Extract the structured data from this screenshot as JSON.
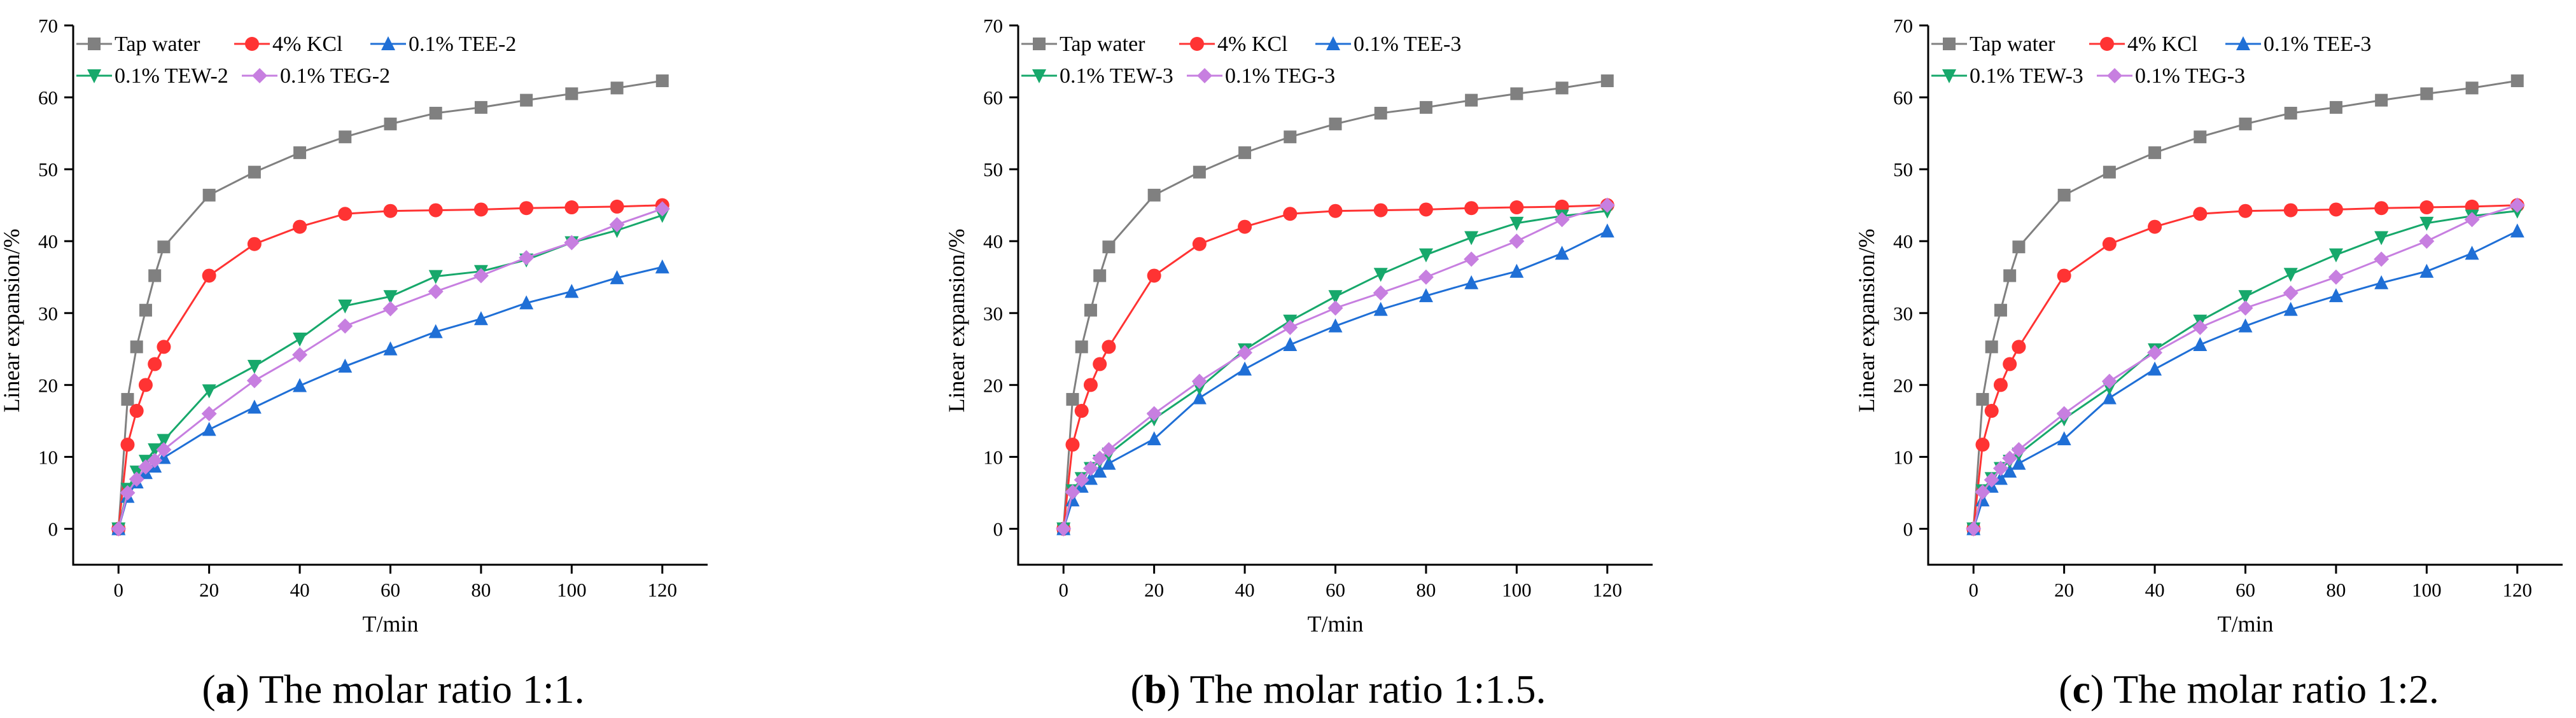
{
  "figure": {
    "captions": [
      {
        "prefix": "(",
        "letter": "a",
        "suffix": ") The molar ratio 1:1."
      },
      {
        "prefix": "(",
        "letter": "b",
        "suffix": ") The molar ratio 1:1.5."
      },
      {
        "prefix": "(",
        "letter": "c",
        "suffix": ") The molar ratio 1:2."
      }
    ]
  },
  "chart_data": [
    {
      "type": "line",
      "title": "",
      "xlabel": "T/min",
      "ylabel": "Linear expansion/%",
      "xlim": [
        -10,
        130
      ],
      "ylim": [
        -5,
        70
      ],
      "xticks": [
        0,
        20,
        40,
        60,
        80,
        100,
        120
      ],
      "yticks": [
        0,
        10,
        20,
        30,
        40,
        50,
        60,
        70
      ],
      "grid": false,
      "legend_position": "top-left",
      "x": [
        0,
        2,
        4,
        6,
        8,
        10,
        20,
        30,
        40,
        50,
        60,
        70,
        80,
        90,
        100,
        110,
        120
      ],
      "series": [
        {
          "name": "Tap water",
          "color": "#808080",
          "marker": "square",
          "values": [
            0,
            18,
            25.3,
            30.4,
            35.2,
            39.2,
            46.4,
            49.6,
            52.3,
            54.5,
            56.3,
            57.8,
            58.6,
            59.6,
            60.5,
            61.3,
            62.3
          ]
        },
        {
          "name": "4% KCl",
          "color": "#ff3333",
          "marker": "circle",
          "values": [
            0,
            11.7,
            16.4,
            20,
            22.9,
            25.3,
            35.2,
            39.6,
            42,
            43.8,
            44.2,
            44.3,
            44.4,
            44.6,
            44.7,
            44.8,
            45
          ]
        },
        {
          "name": "0.1% TEE-2",
          "color": "#1f6fd6",
          "marker": "triangle-up",
          "values": [
            0,
            4.5,
            6.5,
            7.8,
            8.7,
            9.9,
            13.8,
            16.9,
            19.9,
            22.6,
            25,
            27.4,
            29.2,
            31.4,
            33,
            34.9,
            36.4
          ]
        },
        {
          "name": "0.1% TEW-2",
          "color": "#17a86b",
          "marker": "triangle-down",
          "values": [
            0,
            5.5,
            7.9,
            9.4,
            11,
            12.3,
            19.2,
            22.6,
            26.4,
            31,
            32.3,
            35.1,
            35.8,
            37.4,
            39.8,
            41.5,
            43.6
          ]
        },
        {
          "name": "0.1% TEG-2",
          "color": "#c77fe0",
          "marker": "diamond",
          "values": [
            0,
            5,
            6.9,
            8.6,
            9.5,
            11,
            16,
            20.6,
            24.2,
            28.2,
            30.6,
            33,
            35.2,
            37.7,
            39.8,
            42.3,
            44.5
          ]
        }
      ]
    },
    {
      "type": "line",
      "title": "",
      "xlabel": "T/min",
      "ylabel": "Linear expansion/%",
      "xlim": [
        -10,
        130
      ],
      "ylim": [
        -5,
        70
      ],
      "xticks": [
        0,
        20,
        40,
        60,
        80,
        100,
        120
      ],
      "yticks": [
        0,
        10,
        20,
        30,
        40,
        50,
        60,
        70
      ],
      "grid": false,
      "legend_position": "top-left",
      "x": [
        0,
        2,
        4,
        6,
        8,
        10,
        20,
        30,
        40,
        50,
        60,
        70,
        80,
        90,
        100,
        110,
        120
      ],
      "series": [
        {
          "name": "Tap water",
          "color": "#808080",
          "marker": "square",
          "values": [
            0,
            18,
            25.3,
            30.4,
            35.2,
            39.2,
            46.4,
            49.6,
            52.3,
            54.5,
            56.3,
            57.8,
            58.6,
            59.6,
            60.5,
            61.3,
            62.3
          ]
        },
        {
          "name": "4% KCl",
          "color": "#ff3333",
          "marker": "circle",
          "values": [
            0,
            11.7,
            16.4,
            20,
            22.9,
            25.3,
            35.2,
            39.6,
            42,
            43.8,
            44.2,
            44.3,
            44.4,
            44.6,
            44.7,
            44.8,
            45
          ]
        },
        {
          "name": "0.1% TEE-3",
          "color": "#1f6fd6",
          "marker": "triangle-up",
          "values": [
            0,
            4,
            5.9,
            7,
            8,
            9.1,
            12.5,
            18.2,
            22.2,
            25.6,
            28.2,
            30.5,
            32.4,
            34.2,
            35.8,
            38.3,
            41.4
          ]
        },
        {
          "name": "0.1% TEW-3",
          "color": "#17a86b",
          "marker": "triangle-down",
          "values": [
            0,
            5.3,
            7,
            8.4,
            9.4,
            10.4,
            15.3,
            19.6,
            24.9,
            28.9,
            32.3,
            35.4,
            38.1,
            40.5,
            42.5,
            43.5,
            44.2
          ]
        },
        {
          "name": "0.1% TEG-3",
          "color": "#c77fe0",
          "marker": "diamond",
          "values": [
            0,
            5.1,
            6.8,
            8.4,
            9.8,
            11,
            16,
            20.5,
            24.5,
            28,
            30.7,
            32.8,
            35,
            37.5,
            40,
            43,
            45
          ]
        }
      ]
    },
    {
      "type": "line",
      "title": "",
      "xlabel": "T/min",
      "ylabel": "Linear expansion/%",
      "xlim": [
        -10,
        130
      ],
      "ylim": [
        -5,
        70
      ],
      "xticks": [
        0,
        20,
        40,
        60,
        80,
        100,
        120
      ],
      "yticks": [
        0,
        10,
        20,
        30,
        40,
        50,
        60,
        70
      ],
      "grid": false,
      "legend_position": "top-left",
      "x": [
        0,
        2,
        4,
        6,
        8,
        10,
        20,
        30,
        40,
        50,
        60,
        70,
        80,
        90,
        100,
        110,
        120
      ],
      "series": [
        {
          "name": "Tap water",
          "color": "#808080",
          "marker": "square",
          "values": [
            0,
            18,
            25.3,
            30.4,
            35.2,
            39.2,
            46.4,
            49.6,
            52.3,
            54.5,
            56.3,
            57.8,
            58.6,
            59.6,
            60.5,
            61.3,
            62.3
          ]
        },
        {
          "name": "4% KCl",
          "color": "#ff3333",
          "marker": "circle",
          "values": [
            0,
            11.7,
            16.4,
            20,
            22.9,
            25.3,
            35.2,
            39.6,
            42,
            43.8,
            44.2,
            44.3,
            44.4,
            44.6,
            44.7,
            44.8,
            45
          ]
        },
        {
          "name": "0.1% TEE-3",
          "color": "#1f6fd6",
          "marker": "triangle-up",
          "values": [
            0,
            4,
            5.9,
            7,
            8,
            9.1,
            12.5,
            18.2,
            22.2,
            25.6,
            28.2,
            30.5,
            32.4,
            34.2,
            35.8,
            38.3,
            41.4
          ]
        },
        {
          "name": "0.1% TEW-3",
          "color": "#17a86b",
          "marker": "triangle-down",
          "values": [
            0,
            5.3,
            7,
            8.4,
            9.4,
            10.4,
            15.3,
            19.6,
            24.9,
            28.9,
            32.3,
            35.4,
            38.1,
            40.5,
            42.5,
            43.5,
            44.2
          ]
        },
        {
          "name": "0.1% TEG-3",
          "color": "#c77fe0",
          "marker": "diamond",
          "values": [
            0,
            5.1,
            6.8,
            8.4,
            9.8,
            11,
            16,
            20.5,
            24.5,
            28,
            30.7,
            32.8,
            35,
            37.5,
            40,
            43,
            45
          ]
        }
      ]
    }
  ]
}
